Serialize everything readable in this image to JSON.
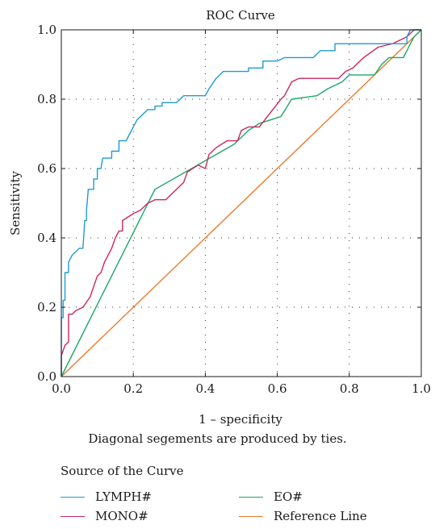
{
  "chart_data": {
    "type": "line",
    "title": "ROC Curve",
    "xlabel": "1 – specificity",
    "ylabel": "Sensitivity",
    "xlim": [
      0,
      1
    ],
    "ylim": [
      0,
      1
    ],
    "x_ticks": [
      "0.0",
      "0.2",
      "0.4",
      "0.6",
      "0.8",
      "1.0"
    ],
    "y_ticks": [
      "0.0",
      "0.2",
      "0.4",
      "0.6",
      "0.8",
      "1.0"
    ],
    "grid": "dotted",
    "footnote": "Diagonal segements are produced by ties.",
    "legend_title": "Source of the Curve",
    "legend_position": "bottom",
    "series": [
      {
        "name": "LYMPH#",
        "color": "#1f9bd1",
        "points": [
          [
            0,
            0
          ],
          [
            0,
            0.17
          ],
          [
            0.005,
            0.17
          ],
          [
            0.005,
            0.22
          ],
          [
            0.01,
            0.22
          ],
          [
            0.01,
            0.3
          ],
          [
            0.02,
            0.3
          ],
          [
            0.02,
            0.33
          ],
          [
            0.03,
            0.35
          ],
          [
            0.05,
            0.37
          ],
          [
            0.06,
            0.37
          ],
          [
            0.065,
            0.45
          ],
          [
            0.07,
            0.45
          ],
          [
            0.07,
            0.48
          ],
          [
            0.075,
            0.54
          ],
          [
            0.09,
            0.54
          ],
          [
            0.09,
            0.57
          ],
          [
            0.1,
            0.57
          ],
          [
            0.1,
            0.6
          ],
          [
            0.11,
            0.6
          ],
          [
            0.115,
            0.63
          ],
          [
            0.14,
            0.63
          ],
          [
            0.14,
            0.65
          ],
          [
            0.16,
            0.65
          ],
          [
            0.16,
            0.68
          ],
          [
            0.18,
            0.68
          ],
          [
            0.19,
            0.7
          ],
          [
            0.2,
            0.72
          ],
          [
            0.21,
            0.74
          ],
          [
            0.22,
            0.75
          ],
          [
            0.23,
            0.76
          ],
          [
            0.24,
            0.77
          ],
          [
            0.26,
            0.77
          ],
          [
            0.26,
            0.78
          ],
          [
            0.28,
            0.78
          ],
          [
            0.28,
            0.79
          ],
          [
            0.32,
            0.79
          ],
          [
            0.34,
            0.81
          ],
          [
            0.38,
            0.81
          ],
          [
            0.4,
            0.81
          ],
          [
            0.41,
            0.83
          ],
          [
            0.43,
            0.86
          ],
          [
            0.45,
            0.88
          ],
          [
            0.52,
            0.88
          ],
          [
            0.52,
            0.89
          ],
          [
            0.56,
            0.89
          ],
          [
            0.56,
            0.91
          ],
          [
            0.6,
            0.91
          ],
          [
            0.62,
            0.92
          ],
          [
            0.7,
            0.92
          ],
          [
            0.72,
            0.94
          ],
          [
            0.76,
            0.94
          ],
          [
            0.76,
            0.96
          ],
          [
            0.88,
            0.96
          ],
          [
            0.96,
            0.96
          ],
          [
            0.96,
            0.98
          ],
          [
            0.97,
            1.0
          ],
          [
            1.0,
            1.0
          ]
        ]
      },
      {
        "name": "MONO#",
        "color": "#d0245e",
        "points": [
          [
            0,
            0
          ],
          [
            0,
            0.06
          ],
          [
            0.01,
            0.09
          ],
          [
            0.02,
            0.1
          ],
          [
            0.02,
            0.18
          ],
          [
            0.03,
            0.18
          ],
          [
            0.04,
            0.19
          ],
          [
            0.06,
            0.2
          ],
          [
            0.08,
            0.23
          ],
          [
            0.09,
            0.26
          ],
          [
            0.1,
            0.29
          ],
          [
            0.11,
            0.3
          ],
          [
            0.12,
            0.33
          ],
          [
            0.14,
            0.37
          ],
          [
            0.15,
            0.4
          ],
          [
            0.16,
            0.42
          ],
          [
            0.17,
            0.42
          ],
          [
            0.17,
            0.45
          ],
          [
            0.2,
            0.47
          ],
          [
            0.22,
            0.48
          ],
          [
            0.24,
            0.5
          ],
          [
            0.26,
            0.51
          ],
          [
            0.29,
            0.51
          ],
          [
            0.3,
            0.52
          ],
          [
            0.34,
            0.56
          ],
          [
            0.35,
            0.59
          ],
          [
            0.38,
            0.61
          ],
          [
            0.4,
            0.6
          ],
          [
            0.41,
            0.64
          ],
          [
            0.43,
            0.66
          ],
          [
            0.46,
            0.68
          ],
          [
            0.49,
            0.68
          ],
          [
            0.5,
            0.71
          ],
          [
            0.52,
            0.72
          ],
          [
            0.55,
            0.72
          ],
          [
            0.58,
            0.76
          ],
          [
            0.61,
            0.8
          ],
          [
            0.62,
            0.81
          ],
          [
            0.64,
            0.85
          ],
          [
            0.66,
            0.86
          ],
          [
            0.77,
            0.86
          ],
          [
            0.79,
            0.88
          ],
          [
            0.81,
            0.89
          ],
          [
            0.84,
            0.92
          ],
          [
            0.88,
            0.95
          ],
          [
            0.92,
            0.96
          ],
          [
            0.96,
            0.98
          ],
          [
            0.98,
            1.0
          ],
          [
            1.0,
            1.0
          ]
        ]
      },
      {
        "name": "EO#",
        "color": "#1aa866",
        "points": [
          [
            0,
            0
          ],
          [
            0.26,
            0.54
          ],
          [
            0.48,
            0.67
          ],
          [
            0.52,
            0.71
          ],
          [
            0.55,
            0.73
          ],
          [
            0.58,
            0.74
          ],
          [
            0.61,
            0.75
          ],
          [
            0.64,
            0.8
          ],
          [
            0.71,
            0.81
          ],
          [
            0.74,
            0.83
          ],
          [
            0.78,
            0.85
          ],
          [
            0.8,
            0.87
          ],
          [
            0.87,
            0.87
          ],
          [
            0.89,
            0.9
          ],
          [
            0.91,
            0.92
          ],
          [
            0.95,
            0.92
          ],
          [
            0.96,
            0.94
          ],
          [
            0.97,
            0.96
          ],
          [
            0.98,
            0.98
          ],
          [
            1.0,
            1.0
          ]
        ]
      },
      {
        "name": "Reference Line",
        "color": "#f07a2a",
        "points": [
          [
            0,
            0
          ],
          [
            1,
            1
          ]
        ]
      }
    ]
  }
}
